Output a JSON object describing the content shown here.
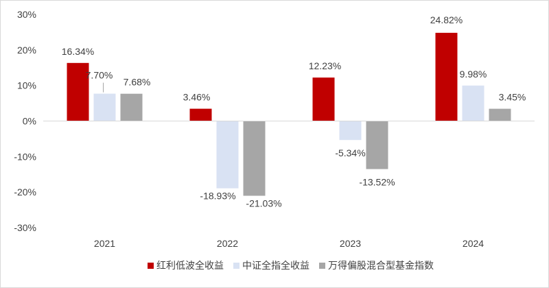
{
  "chart_data": {
    "type": "bar",
    "title": "",
    "xlabel": "",
    "ylabel": "",
    "categories": [
      "2021",
      "2022",
      "2023",
      "2024"
    ],
    "series": [
      {
        "name": "红利低波全收益",
        "color": "#c00000",
        "values": [
          16.34,
          3.46,
          12.23,
          24.82
        ],
        "labels": [
          "16.34%",
          "3.46%",
          "12.23%",
          "24.82%"
        ]
      },
      {
        "name": "中证全指全收益",
        "color": "#d9e2f3",
        "values": [
          7.7,
          -18.93,
          -5.34,
          9.98
        ],
        "labels": [
          "7.70%",
          "-18.93%",
          "-5.34%",
          "9.98%"
        ]
      },
      {
        "name": "万得偏股混合型基金指数",
        "color": "#a6a6a6",
        "values": [
          7.68,
          -21.03,
          -13.52,
          3.45
        ],
        "labels": [
          "7.68%",
          "-21.03%",
          "-13.52%",
          "3.45%"
        ]
      }
    ],
    "ylim": [
      -30,
      30
    ],
    "yticks": [
      30,
      20,
      10,
      0,
      -10,
      -20,
      -30
    ],
    "ytick_labels": [
      "30%",
      "20%",
      "10%",
      "0%",
      "-10%",
      "-20%",
      "-30%"
    ],
    "grid": false,
    "legend_position": "bottom"
  }
}
